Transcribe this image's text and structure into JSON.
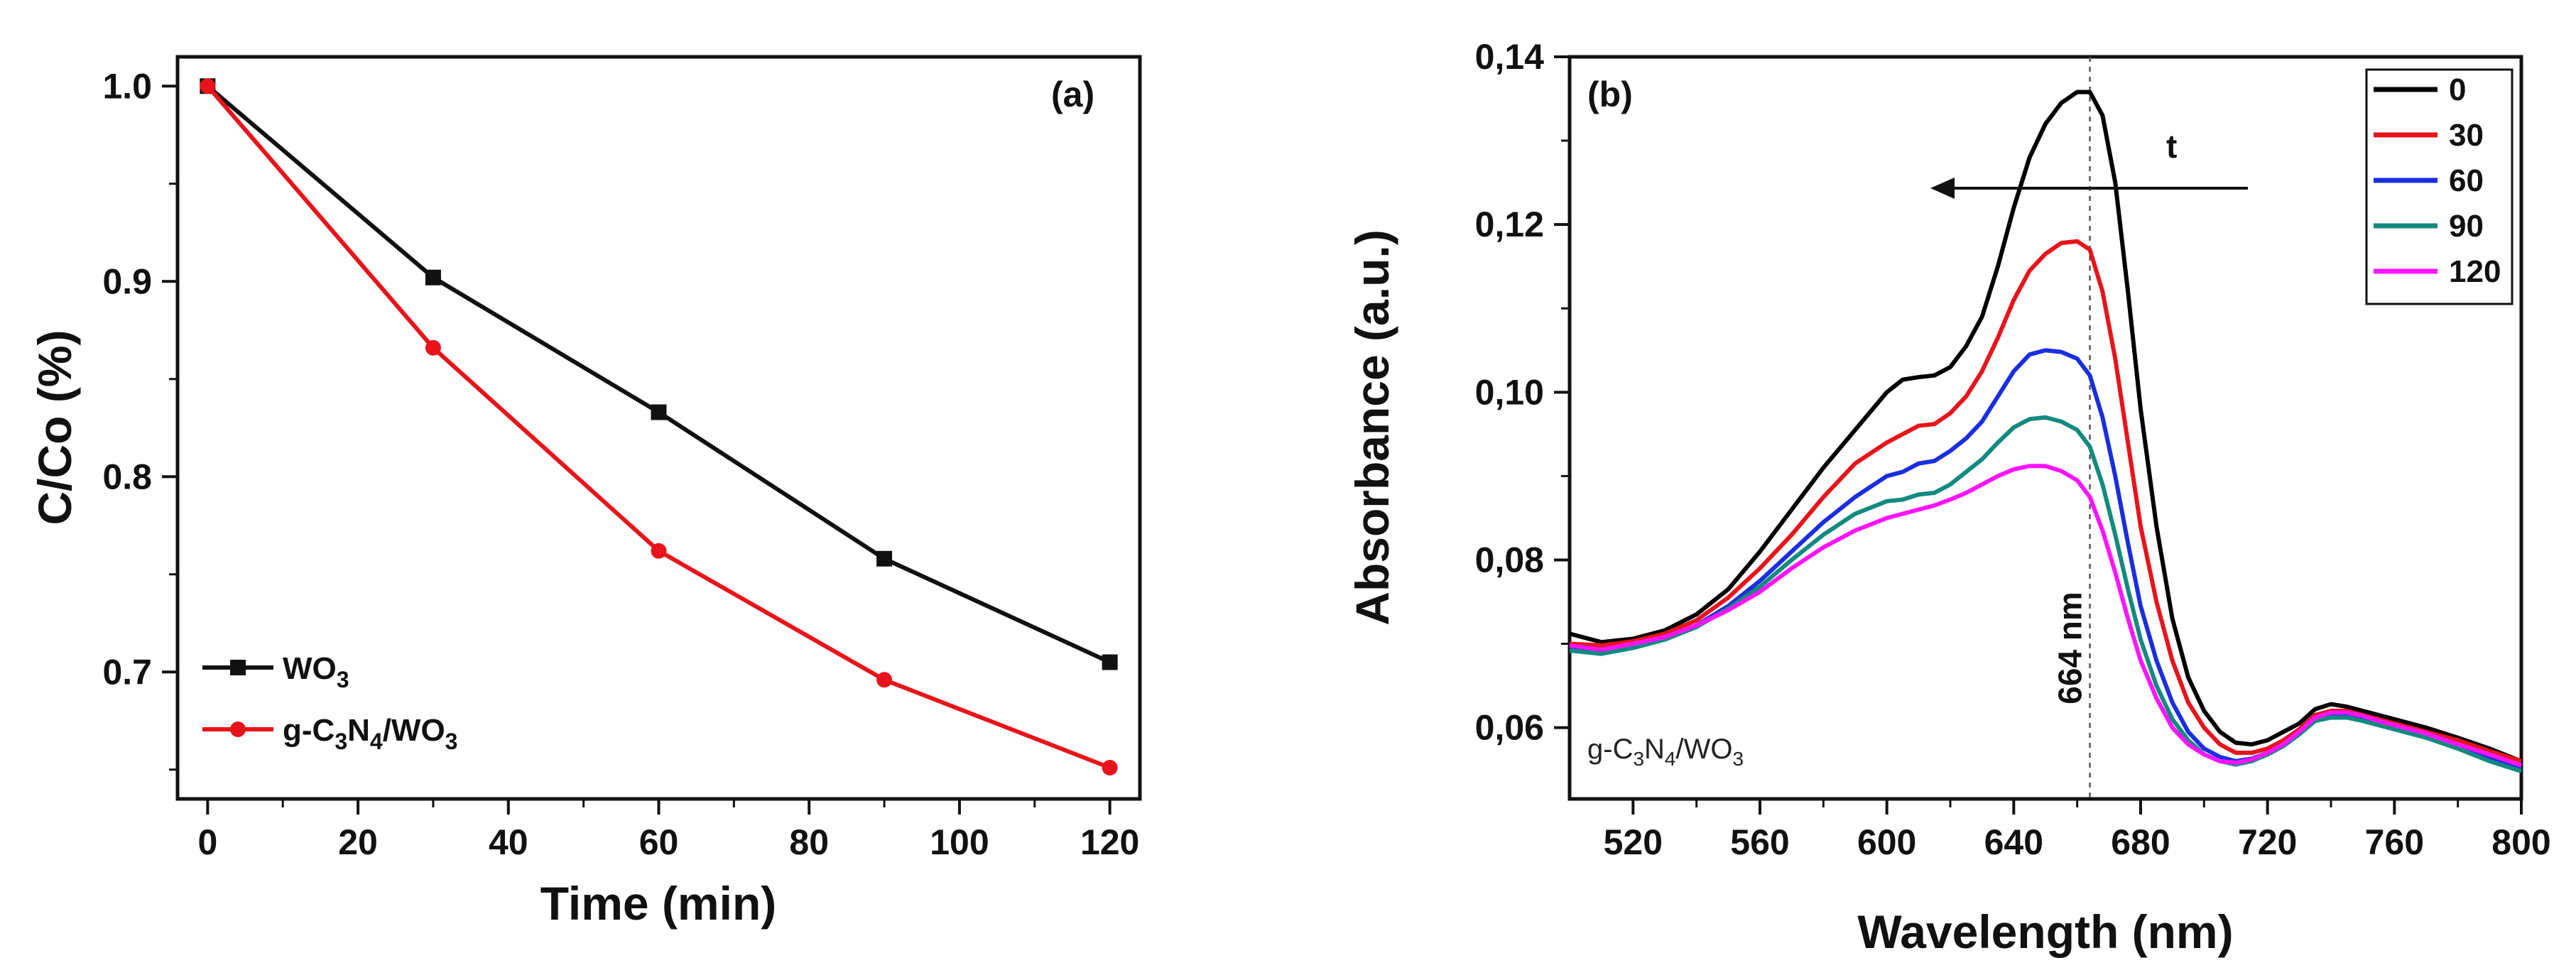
{
  "chart_data": [
    {
      "type": "line",
      "panel_label": "(a)",
      "xlabel": "Time (min)",
      "ylabel": "C/Co (%)",
      "xlim": [
        -4,
        124
      ],
      "ylim": [
        0.635,
        1.015
      ],
      "xticks": [
        0,
        20,
        40,
        60,
        80,
        100,
        120
      ],
      "xtick_labels": [
        "0",
        "20",
        "40",
        "60",
        "80",
        "100",
        "120"
      ],
      "yticks": [
        0.7,
        0.8,
        0.9,
        1.0
      ],
      "ytick_labels": [
        "0.7",
        "0.8",
        "0.9",
        "1.0"
      ],
      "legend_position": "bottom-left",
      "series": [
        {
          "name": "WO3",
          "label_main": "WO",
          "label_sub": "3",
          "color": "#111111",
          "marker": "square",
          "x": [
            0,
            30,
            60,
            90,
            120
          ],
          "y": [
            1.0,
            0.902,
            0.833,
            0.758,
            0.705
          ]
        },
        {
          "name": "g-C3N4/WO3",
          "color": "#e8141b",
          "marker": "circle",
          "label_parts": [
            [
              "g-C",
              false
            ],
            [
              "3",
              true
            ],
            [
              "N",
              false
            ],
            [
              "4",
              true
            ],
            [
              "/WO",
              false
            ],
            [
              "3",
              true
            ]
          ],
          "x": [
            0,
            30,
            60,
            90,
            120
          ],
          "y": [
            1.0,
            0.866,
            0.762,
            0.696,
            0.651
          ]
        }
      ]
    },
    {
      "type": "line",
      "panel_label": "(b)",
      "xlabel": "Wavelength (nm)",
      "ylabel": "Absorbance (a.u.)",
      "xlim": [
        500,
        800
      ],
      "ylim": [
        0.0515,
        0.14
      ],
      "xticks": [
        520,
        560,
        600,
        640,
        680,
        720,
        760,
        800
      ],
      "xtick_labels": [
        "520",
        "560",
        "600",
        "640",
        "680",
        "720",
        "760",
        "800"
      ],
      "yticks": [
        0.06,
        0.08,
        0.1,
        0.12,
        0.14
      ],
      "ytick_labels": [
        "0,06",
        "0,08",
        "0,10",
        "0,12",
        "0,14"
      ],
      "legend_position": "top-right",
      "arrow_label": "t",
      "peak_label": "664 nm",
      "peak_wavelength": 664,
      "sample_label_parts": [
        [
          "g-C",
          false
        ],
        [
          "3",
          true
        ],
        [
          "N",
          false
        ],
        [
          "4",
          true
        ],
        [
          "/WO",
          false
        ],
        [
          "3",
          true
        ]
      ],
      "x": [
        500,
        510,
        520,
        530,
        540,
        550,
        560,
        570,
        580,
        590,
        600,
        605,
        610,
        615,
        620,
        625,
        630,
        635,
        640,
        645,
        650,
        655,
        660,
        664,
        668,
        672,
        676,
        680,
        685,
        690,
        695,
        700,
        705,
        710,
        715,
        720,
        725,
        730,
        735,
        740,
        745,
        750,
        755,
        760,
        770,
        780,
        790,
        800
      ],
      "series": [
        {
          "name": "0",
          "color": "#000000",
          "y": [
            0.0712,
            0.0702,
            0.0706,
            0.0716,
            0.0735,
            0.0765,
            0.081,
            0.086,
            0.091,
            0.0955,
            0.1,
            0.1015,
            0.1018,
            0.102,
            0.103,
            0.1055,
            0.109,
            0.115,
            0.122,
            0.128,
            0.132,
            0.1345,
            0.1358,
            0.1358,
            0.133,
            0.125,
            0.112,
            0.098,
            0.084,
            0.073,
            0.066,
            0.062,
            0.0595,
            0.0582,
            0.058,
            0.0585,
            0.0595,
            0.0605,
            0.0622,
            0.0628,
            0.0625,
            0.062,
            0.0615,
            0.061,
            0.06,
            0.0588,
            0.0575,
            0.056
          ]
        },
        {
          "name": "30",
          "color": "#e8141b",
          "y": [
            0.07,
            0.0698,
            0.0703,
            0.0712,
            0.0728,
            0.0755,
            0.079,
            0.083,
            0.0875,
            0.0915,
            0.094,
            0.095,
            0.096,
            0.0962,
            0.0975,
            0.0995,
            0.1025,
            0.1065,
            0.111,
            0.1145,
            0.1165,
            0.1178,
            0.118,
            0.117,
            0.112,
            0.104,
            0.094,
            0.084,
            0.075,
            0.068,
            0.063,
            0.06,
            0.058,
            0.057,
            0.057,
            0.0575,
            0.0585,
            0.0598,
            0.0615,
            0.062,
            0.062,
            0.0615,
            0.061,
            0.0605,
            0.0595,
            0.0585,
            0.0572,
            0.056
          ]
        },
        {
          "name": "60",
          "color": "#1a2ee0",
          "y": [
            0.0695,
            0.069,
            0.0698,
            0.0708,
            0.0722,
            0.0745,
            0.0775,
            0.081,
            0.0845,
            0.0875,
            0.09,
            0.0905,
            0.0915,
            0.0918,
            0.093,
            0.0945,
            0.0965,
            0.0995,
            0.1025,
            0.1045,
            0.105,
            0.1048,
            0.104,
            0.102,
            0.097,
            0.09,
            0.082,
            0.0745,
            0.068,
            0.063,
            0.0595,
            0.0575,
            0.0565,
            0.056,
            0.0563,
            0.057,
            0.058,
            0.0595,
            0.061,
            0.0615,
            0.0615,
            0.0612,
            0.0608,
            0.0602,
            0.0592,
            0.058,
            0.0565,
            0.0552
          ]
        },
        {
          "name": "90",
          "color": "#128a80",
          "y": [
            0.0692,
            0.0688,
            0.0695,
            0.0705,
            0.072,
            0.0742,
            0.0768,
            0.08,
            0.083,
            0.0855,
            0.087,
            0.0872,
            0.0878,
            0.088,
            0.089,
            0.0905,
            0.092,
            0.094,
            0.0958,
            0.0968,
            0.097,
            0.0965,
            0.0955,
            0.0935,
            0.089,
            0.083,
            0.0765,
            0.0705,
            0.065,
            0.061,
            0.0585,
            0.0568,
            0.056,
            0.0556,
            0.056,
            0.0568,
            0.0578,
            0.0592,
            0.0608,
            0.0612,
            0.0612,
            0.0608,
            0.0603,
            0.0598,
            0.0588,
            0.0575,
            0.056,
            0.0548
          ]
        },
        {
          "name": "120",
          "color": "#ff14ff",
          "y": [
            0.0698,
            0.0693,
            0.07,
            0.0708,
            0.0722,
            0.074,
            0.0762,
            0.079,
            0.0815,
            0.0835,
            0.085,
            0.0855,
            0.086,
            0.0865,
            0.0872,
            0.088,
            0.089,
            0.09,
            0.0908,
            0.0912,
            0.0912,
            0.0906,
            0.0895,
            0.0875,
            0.0835,
            0.0785,
            0.073,
            0.068,
            0.0635,
            0.06,
            0.058,
            0.0568,
            0.056,
            0.0558,
            0.0562,
            0.057,
            0.058,
            0.0595,
            0.0612,
            0.0618,
            0.0618,
            0.0614,
            0.0608,
            0.0603,
            0.0593,
            0.058,
            0.0568,
            0.0555
          ]
        }
      ]
    }
  ]
}
